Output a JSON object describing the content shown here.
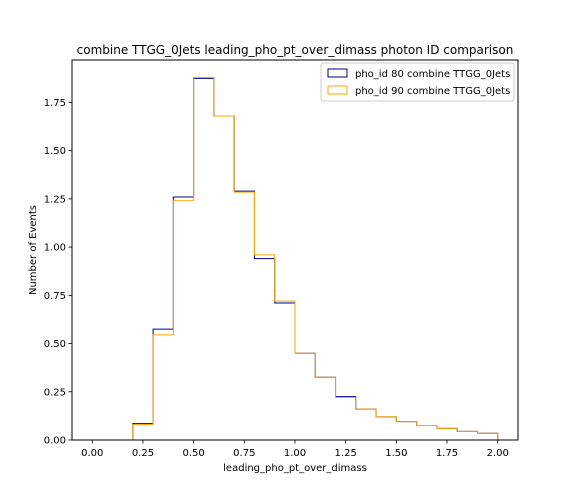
{
  "chart_data": {
    "type": "histogram",
    "title": "combine TTGG_0Jets leading_pho_pt_over_dimass photon ID comparison",
    "xlabel": "leading_pho_pt_over_dimass",
    "ylabel": "Number of Events",
    "xlim": [
      -0.1,
      2.1
    ],
    "ylim": [
      0,
      1.97
    ],
    "xticks": [
      0.0,
      0.25,
      0.5,
      0.75,
      1.0,
      1.25,
      1.5,
      1.75,
      2.0
    ],
    "xtick_labels": [
      "0.00",
      "0.25",
      "0.50",
      "0.75",
      "1.00",
      "1.25",
      "1.50",
      "1.75",
      "2.00"
    ],
    "yticks": [
      0.0,
      0.25,
      0.5,
      0.75,
      1.0,
      1.25,
      1.5,
      1.75
    ],
    "ytick_labels": [
      "0.00",
      "0.25",
      "0.50",
      "0.75",
      "1.00",
      "1.25",
      "1.50",
      "1.75"
    ],
    "bin_edges": [
      0.0,
      0.1,
      0.2,
      0.3,
      0.4,
      0.5,
      0.6,
      0.7,
      0.8,
      0.9,
      1.0,
      1.1,
      1.2,
      1.3,
      1.4,
      1.5,
      1.6,
      1.7,
      1.8,
      1.9,
      2.0
    ],
    "legend_position": "upper right",
    "grid": false,
    "series": [
      {
        "name": "pho_id 80 combine TTGG_0Jets",
        "color": "#00008b",
        "values": [
          0.0,
          0.0,
          0.085,
          0.575,
          1.26,
          1.875,
          1.68,
          1.29,
          0.94,
          0.71,
          0.45,
          0.325,
          0.225,
          0.16,
          0.12,
          0.095,
          0.075,
          0.06,
          0.045,
          0.035
        ]
      },
      {
        "name": "pho_id 90 combine TTGG_0Jets",
        "color": "#ffa500",
        "values": [
          0.0,
          0.0,
          0.08,
          0.545,
          1.24,
          1.88,
          1.68,
          1.285,
          0.96,
          0.72,
          0.45,
          0.325,
          0.22,
          0.16,
          0.12,
          0.095,
          0.075,
          0.06,
          0.045,
          0.035
        ]
      }
    ]
  }
}
